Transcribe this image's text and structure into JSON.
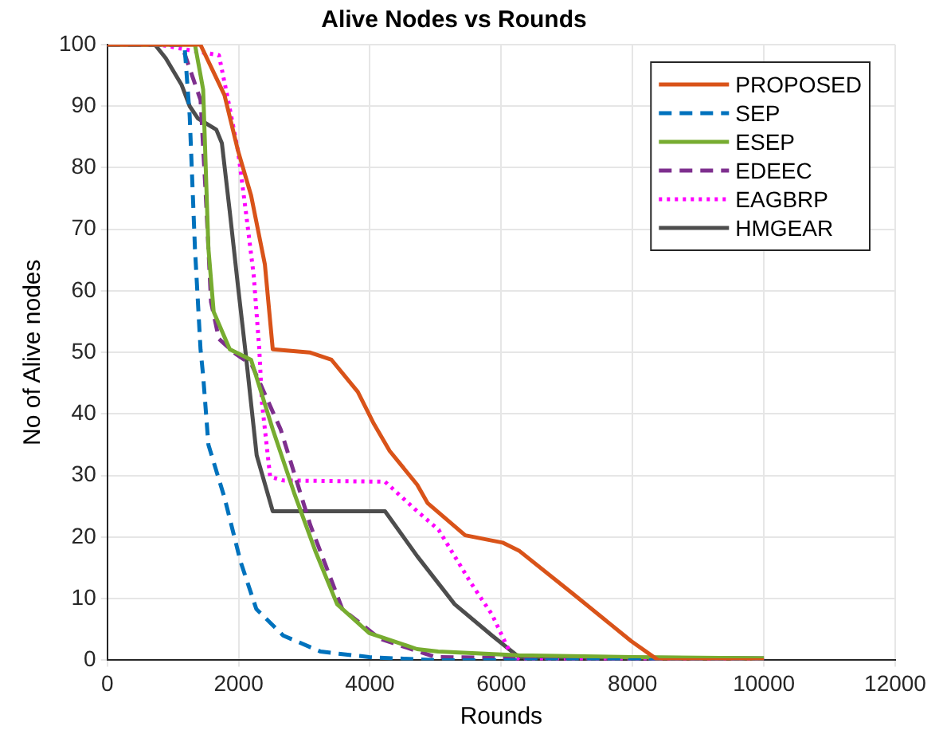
{
  "chart_data": {
    "type": "line",
    "title": "Alive Nodes vs Rounds",
    "xlabel": "Rounds",
    "ylabel": "No of Alive nodes",
    "xlim": [
      0,
      12000
    ],
    "xticks": [
      0,
      2000,
      4000,
      6000,
      8000,
      10000,
      12000
    ],
    "ylim": [
      0,
      100
    ],
    "yticks": [
      0,
      10,
      20,
      30,
      40,
      50,
      60,
      70,
      80,
      90,
      100
    ],
    "grid": true,
    "legend": "top right",
    "marker": "none",
    "series": [
      {
        "name": "PROPOSED",
        "color": "#d95319",
        "line_style": "solid",
        "x": [
          0,
          1418,
          1785,
          1990,
          2190,
          2400,
          2520,
          3080,
          3415,
          3815,
          4060,
          4300,
          4720,
          4880,
          5450,
          6020,
          6270,
          7080,
          7980,
          8390,
          10000
        ],
        "values": [
          100,
          100,
          91.8,
          82.8,
          75.5,
          64.3,
          50.5,
          50,
          48.8,
          43.6,
          38.4,
          34,
          28.5,
          25.5,
          20.3,
          19.1,
          17.8,
          10.9,
          3.1,
          0,
          0
        ]
      },
      {
        "name": "SEP",
        "color": "#0072bd",
        "line_style": "dashed",
        "x": [
          0,
          1175,
          1255,
          1335,
          1420,
          1460,
          1540,
          1785,
          2030,
          2270,
          2680,
          3250,
          3990,
          5000,
          10000
        ],
        "values": [
          100,
          100,
          88.4,
          66.9,
          50.5,
          46.2,
          35,
          26.4,
          16,
          8.3,
          4,
          1.4,
          0.5,
          0,
          0
        ]
      },
      {
        "name": "ESEP",
        "color": "#77ac30",
        "line_style": "solid",
        "x": [
          0,
          1335,
          1460,
          1500,
          1540,
          1620,
          1865,
          2190,
          2520,
          2845,
          3170,
          3500,
          3990,
          4720,
          5040,
          6270,
          8000,
          10000
        ],
        "values": [
          100,
          100,
          92.7,
          79.8,
          66.9,
          56.6,
          50.5,
          48.8,
          37.5,
          27.2,
          17.7,
          9.1,
          4.4,
          1.8,
          1.4,
          0.8,
          0.5,
          0.3
        ]
      },
      {
        "name": "EDEEC",
        "color": "#7e2f8e",
        "line_style": "dashed",
        "x": [
          0,
          1130,
          1420,
          1500,
          1580,
          1700,
          1950,
          2200,
          2640,
          3090,
          3580,
          4150,
          5000,
          10000
        ],
        "values": [
          100,
          100,
          91,
          75.5,
          58.2,
          52.2,
          49.8,
          48,
          37.5,
          22,
          8.3,
          3.5,
          0.5,
          0
        ]
      },
      {
        "name": "EAGBRP",
        "color": "#ff00ff",
        "line_style": "dotted",
        "x": [
          0,
          800,
          1300,
          1700,
          1825,
          1990,
          2110,
          2230,
          2315,
          2355,
          2480,
          2680,
          4230,
          4720,
          5045,
          5535,
          5860,
          6145,
          6270,
          10000
        ],
        "values": [
          100,
          100,
          99,
          98.3,
          91.8,
          82.8,
          72.9,
          62.5,
          50.5,
          41.9,
          29.8,
          29.2,
          29,
          24.2,
          21.2,
          12.6,
          7.4,
          1,
          0,
          0
        ]
      },
      {
        "name": "HMGEAR",
        "color": "#4d4d4d",
        "line_style": "solid",
        "x": [
          0,
          725,
          890,
          1130,
          1255,
          1380,
          1660,
          1745,
          1865,
          1990,
          2110,
          2275,
          2520,
          4230,
          4720,
          5290,
          5860,
          6270,
          10000
        ],
        "values": [
          100,
          100,
          97.8,
          93.5,
          90,
          88,
          86.2,
          84,
          72.9,
          60.8,
          49.6,
          33.3,
          24.2,
          24.2,
          16.9,
          9.1,
          4,
          0.5,
          0.3
        ]
      }
    ]
  }
}
